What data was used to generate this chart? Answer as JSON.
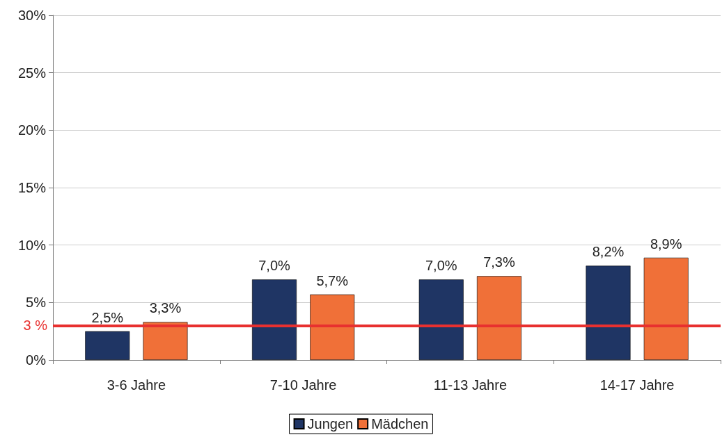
{
  "chart_data": {
    "type": "bar",
    "categories": [
      "3-6 Jahre",
      "7-10 Jahre",
      "11-13 Jahre",
      "14-17 Jahre"
    ],
    "series": [
      {
        "name": "Jungen",
        "color": "#1f3564",
        "values": [
          2.5,
          7.0,
          7.0,
          8.2
        ],
        "value_labels": [
          "2,5%",
          "7,0%",
          "7,0%",
          "8,2%"
        ]
      },
      {
        "name": "Mädchen",
        "color": "#f07038",
        "values": [
          3.3,
          5.7,
          7.3,
          8.9
        ],
        "value_labels": [
          "3,3%",
          "5,7%",
          "7,3%",
          "8,9%"
        ]
      }
    ],
    "ylim": [
      0,
      30
    ],
    "yticks": [
      {
        "value": 0,
        "label": "0%"
      },
      {
        "value": 5,
        "label": "5%"
      },
      {
        "value": 10,
        "label": "10%"
      },
      {
        "value": 15,
        "label": "15%"
      },
      {
        "value": 20,
        "label": "20%"
      },
      {
        "value": 25,
        "label": "25%"
      },
      {
        "value": 30,
        "label": "30%"
      }
    ],
    "ref_lines": [
      {
        "axis": "y",
        "value": 3,
        "label": "3 %",
        "color": "#e8302f"
      }
    ],
    "grid": "y",
    "legend": "bottom"
  }
}
